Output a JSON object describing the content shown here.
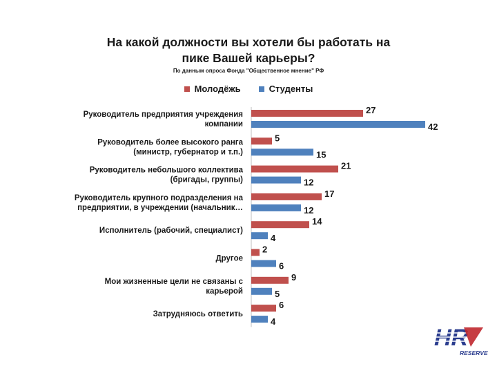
{
  "chart_data": {
    "type": "bar",
    "orientation": "horizontal",
    "title": "На какой должности вы хотели бы работать на\nпике Вашей карьеры?",
    "subtitle": "По данным опроса Фонда \"Общественное мнение\" РФ",
    "categories": [
      "Руководитель предприятия учреждения\nкомпании",
      "Руководитель более высокого ранга\n(министр, губернатор и т.п.)",
      "Руководитель небольшого коллектива\n(бригады, группы)",
      "Руководитель крупного подразделения на\nпредприятии, в учреждении (начальник…",
      "Исполнитель (рабочий, специалист)",
      "Другое",
      "Мои жизненные цели не связаны с\nкарьерой",
      "Затрудняюсь ответить"
    ],
    "series": [
      {
        "name": "Молодёжь",
        "color": "#c0504d",
        "values": [
          27,
          5,
          21,
          17,
          14,
          2,
          9,
          6
        ]
      },
      {
        "name": "Студенты",
        "color": "#4f81bd",
        "values": [
          42,
          15,
          12,
          12,
          4,
          6,
          5,
          4
        ]
      }
    ],
    "xlim": [
      0,
      45
    ],
    "grid": false,
    "legend_position": "top"
  },
  "logo": {
    "mark": "HR",
    "text": "RESERVE"
  }
}
